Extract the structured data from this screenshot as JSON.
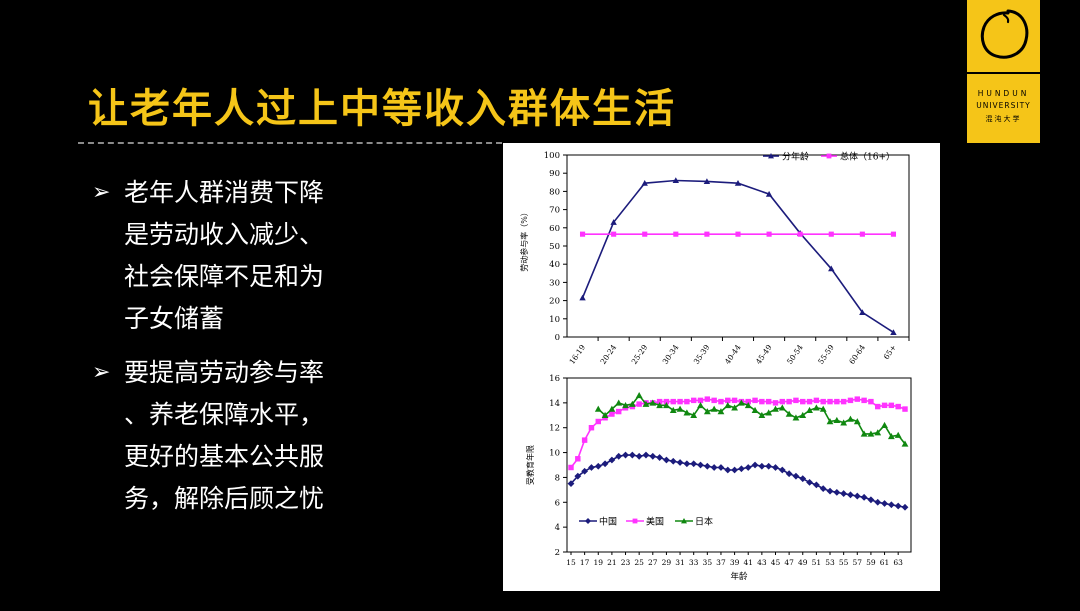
{
  "title": "让老年人过上中等收入群体生活",
  "logo": {
    "line1": "HUNDUN",
    "line2": "UNIVERSITY",
    "line3": "混沌大学"
  },
  "bullets": [
    {
      "icon": "arrow-right",
      "lines": [
        "老年人群消费下降",
        "是劳动收入减少、",
        "社会保障不足和为",
        "子女储蓄"
      ]
    },
    {
      "icon": "arrow-right",
      "lines": [
        "要提高劳动参与率",
        "、养老保障水平，",
        "更好的基本公共服",
        "务，解除后顾之忧"
      ]
    }
  ],
  "colors": {
    "title": "#f5c518",
    "logo_bg": "#f5c518",
    "navy": "#1c1c7c",
    "magenta": "#ff33ff",
    "green": "#108810"
  },
  "chart_data": [
    {
      "type": "line",
      "title": "",
      "ylabel": "劳动参与率（%）",
      "xlabel": "",
      "ylim": [
        0,
        100
      ],
      "yticks": [
        0,
        10,
        20,
        30,
        40,
        50,
        60,
        70,
        80,
        90,
        100
      ],
      "categories": [
        "16-19",
        "20-24",
        "25-29",
        "30-34",
        "35-39",
        "40-44",
        "45-49",
        "50-54",
        "55-59",
        "60-64",
        "65+"
      ],
      "grid": false,
      "legend_position": "top-right",
      "series": [
        {
          "name": "分年龄",
          "marker": "triangle",
          "color": "#1c1c7c",
          "values": [
            21.5,
            63,
            84.5,
            86,
            85.5,
            84.5,
            78.5,
            57,
            37.5,
            13.5,
            2.5
          ]
        },
        {
          "name": "总体（16+）",
          "marker": "square",
          "color": "#ff33ff",
          "values": [
            56.5,
            56.5,
            56.5,
            56.5,
            56.5,
            56.5,
            56.5,
            56.5,
            56.5,
            56.5,
            56.5
          ]
        }
      ]
    },
    {
      "type": "line",
      "title": "",
      "ylabel": "受教育年限",
      "xlabel": "年龄",
      "ylim": [
        2,
        16
      ],
      "yticks": [
        2,
        4,
        6,
        8,
        10,
        12,
        14,
        16
      ],
      "x": [
        15,
        16,
        17,
        18,
        19,
        20,
        21,
        22,
        23,
        24,
        25,
        26,
        27,
        28,
        29,
        30,
        31,
        32,
        33,
        34,
        35,
        36,
        37,
        38,
        39,
        40,
        41,
        42,
        43,
        44,
        45,
        46,
        47,
        48,
        49,
        50,
        51,
        52,
        53,
        54,
        55,
        56,
        57,
        58,
        59,
        60,
        61,
        62,
        63,
        64
      ],
      "xticks": [
        15,
        17,
        19,
        21,
        23,
        25,
        27,
        29,
        31,
        33,
        35,
        37,
        39,
        41,
        43,
        45,
        47,
        49,
        51,
        53,
        55,
        57,
        59,
        61,
        63
      ],
      "grid": false,
      "legend_position": "bottom-left",
      "series": [
        {
          "name": "中国",
          "marker": "diamond",
          "color": "#1c1c7c",
          "values": [
            7.5,
            8.1,
            8.5,
            8.8,
            8.9,
            9.1,
            9.4,
            9.7,
            9.8,
            9.8,
            9.7,
            9.8,
            9.7,
            9.6,
            9.4,
            9.3,
            9.2,
            9.1,
            9.1,
            9.0,
            8.9,
            8.8,
            8.8,
            8.6,
            8.6,
            8.7,
            8.8,
            9.0,
            8.9,
            8.9,
            8.8,
            8.6,
            8.3,
            8.1,
            7.9,
            7.6,
            7.4,
            7.1,
            6.9,
            6.8,
            6.7,
            6.6,
            6.5,
            6.4,
            6.2,
            6.0,
            5.9,
            5.8,
            5.7,
            5.6
          ]
        },
        {
          "name": "美国",
          "marker": "square",
          "color": "#ff33ff",
          "values": [
            8.8,
            9.5,
            11.0,
            12.0,
            12.5,
            12.8,
            13.1,
            13.3,
            13.6,
            13.7,
            13.9,
            14.0,
            14.0,
            14.1,
            14.1,
            14.1,
            14.1,
            14.1,
            14.2,
            14.2,
            14.3,
            14.2,
            14.1,
            14.2,
            14.2,
            14.1,
            14.1,
            14.2,
            14.1,
            14.1,
            14.0,
            14.1,
            14.1,
            14.2,
            14.1,
            14.1,
            14.2,
            14.1,
            14.1,
            14.1,
            14.1,
            14.2,
            14.3,
            14.2,
            14.1,
            13.7,
            13.8,
            13.8,
            13.7,
            13.5
          ]
        },
        {
          "name": "日本",
          "marker": "triangle",
          "color": "#108810",
          "values": [
            null,
            null,
            null,
            null,
            13.5,
            13.0,
            13.5,
            14.0,
            13.8,
            13.9,
            14.6,
            13.9,
            14.0,
            13.8,
            13.8,
            13.4,
            13.5,
            13.2,
            13.0,
            13.8,
            13.3,
            13.5,
            13.3,
            13.8,
            13.6,
            14.0,
            13.8,
            13.4,
            13.0,
            13.2,
            13.5,
            13.6,
            13.1,
            12.8,
            13.0,
            13.4,
            13.6,
            13.5,
            12.5,
            12.6,
            12.4,
            12.7,
            12.5,
            11.5,
            11.5,
            11.6,
            12.2,
            11.3,
            11.4,
            10.7
          ]
        }
      ]
    }
  ]
}
